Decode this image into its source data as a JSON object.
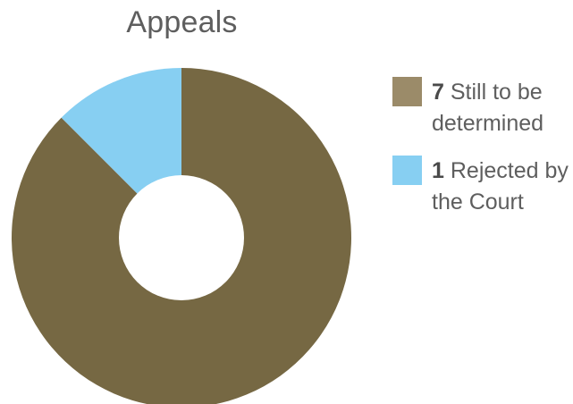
{
  "chart_data": {
    "type": "pie",
    "title": "Appeals",
    "donut": true,
    "slices": [
      {
        "value": 7,
        "label": "Still to be determined",
        "color": "#766843",
        "legend_color": "#9b8b69"
      },
      {
        "value": 1,
        "label": "Rejected by the Court",
        "color": "#87cff2",
        "legend_color": "#87cff2"
      }
    ],
    "legend_position": "right"
  }
}
